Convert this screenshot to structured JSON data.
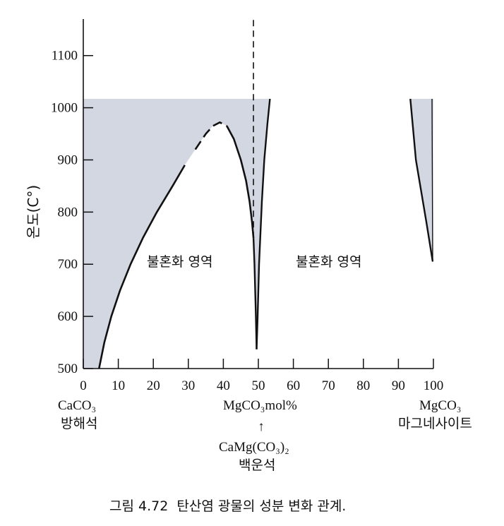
{
  "chart_data": {
    "type": "area",
    "title": "",
    "xlabel": "MgCO₃ mol%",
    "ylabel": "온도(C°)",
    "xlim": [
      0,
      100
    ],
    "ylim": [
      500,
      1170
    ],
    "x_ticks": [
      0,
      10,
      20,
      30,
      40,
      50,
      60,
      70,
      80,
      90,
      100
    ],
    "y_ticks": [
      500,
      600,
      700,
      800,
      900,
      1000,
      1100
    ],
    "grid": false,
    "shading_top": 1017,
    "series": [
      {
        "points": [
          [
            4.5,
            500
          ],
          [
            6,
            550
          ],
          [
            8,
            600
          ],
          [
            10.5,
            650
          ],
          [
            13.5,
            700
          ],
          [
            17,
            750
          ],
          [
            21,
            800
          ],
          [
            25.5,
            850
          ],
          [
            29,
            890
          ],
          [
            32,
            920
          ],
          [
            35,
            950
          ],
          [
            37,
            965
          ],
          [
            39,
            972
          ],
          [
            41,
            965
          ],
          [
            43,
            940
          ],
          [
            45,
            900
          ],
          [
            46.5,
            860
          ],
          [
            47.5,
            820
          ],
          [
            48.2,
            780
          ],
          [
            48.6,
            750
          ]
        ],
        "dashed_x_range": [
          30,
          41
        ]
      },
      {
        "points": [
          [
            49.5,
            537
          ],
          [
            49.3,
            600
          ],
          [
            48.9,
            700
          ],
          [
            48.6,
            750
          ]
        ]
      },
      {
        "points": [
          [
            49.5,
            537
          ],
          [
            49.8,
            600
          ],
          [
            50.2,
            700
          ],
          [
            50.6,
            760
          ],
          [
            51,
            820
          ],
          [
            51.7,
            900
          ],
          [
            52.6,
            970
          ],
          [
            53.3,
            1017
          ]
        ]
      },
      {
        "points": [
          [
            93.4,
            1017
          ],
          [
            95,
            900
          ],
          [
            98,
            780
          ],
          [
            99.8,
            705
          ]
        ]
      },
      {
        "points": [
          [
            99.8,
            705
          ],
          [
            99.6,
            1017
          ]
        ]
      }
    ],
    "reference_line": {
      "x": 48.6,
      "y_from": 750,
      "y_to": 1170,
      "style": "dashed"
    },
    "annotations": {
      "left_region": "불혼화 영역",
      "right_region": "불혼화 영역",
      "x_left_formula": "CaCO₃",
      "x_left_mineral": "방해석",
      "x_mid_formula": "MgCO₃mol%",
      "dolomite_arrow": "↑",
      "dolomite_formula": "CaMg(CO₃)₂",
      "dolomite_mineral": "백운석",
      "x_right_formula": "MgCO₃",
      "x_right_mineral": "마그네사이트"
    },
    "caption": "그림 4.72  탄산염 광물의 성분 변화 관계."
  },
  "colors": {
    "shade": "#d3d7e1",
    "ink": "#111111"
  }
}
